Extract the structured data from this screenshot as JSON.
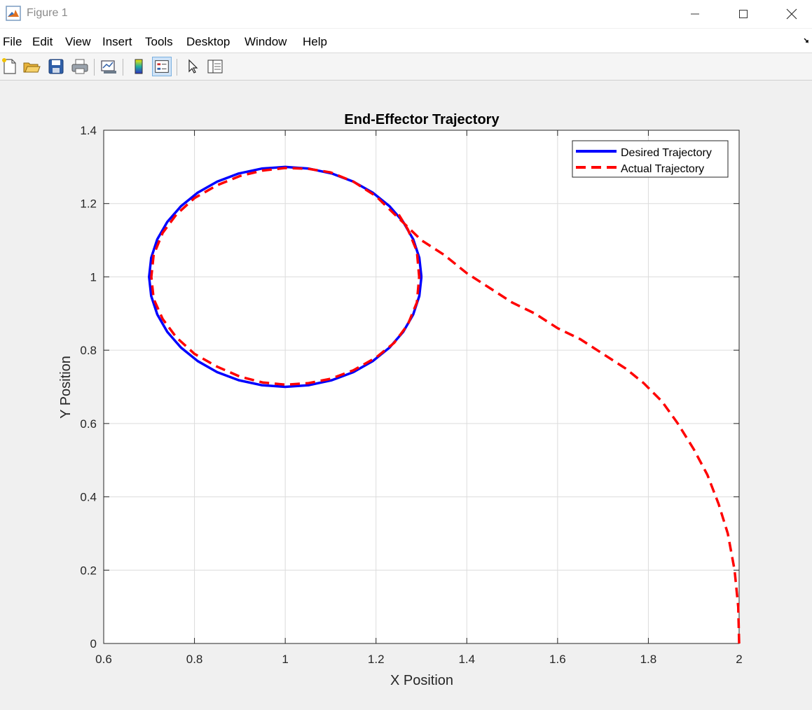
{
  "window": {
    "title": "Figure 1"
  },
  "menu": {
    "items": [
      "File",
      "Edit",
      "View",
      "Insert",
      "Tools",
      "Desktop",
      "Window",
      "Help"
    ]
  },
  "toolbar": {
    "icons": [
      "new-figure-icon",
      "open-file-icon",
      "save-icon",
      "print-icon",
      "link-plot-icon",
      "colorbar-icon",
      "legend-icon",
      "edit-plot-arrow-icon",
      "property-inspector-icon"
    ]
  },
  "colors": {
    "desired": "#0000ff",
    "actual": "#ff0000"
  },
  "chart_data": {
    "type": "line",
    "title": "End-Effector Trajectory",
    "xlabel": "X Position",
    "ylabel": "Y Position",
    "xlim": [
      0.6,
      2
    ],
    "ylim": [
      0,
      1.4
    ],
    "xticks": [
      0.6,
      0.8,
      1,
      1.2,
      1.4,
      1.6,
      1.8,
      2
    ],
    "xtick_labels": [
      "0.6",
      "0.8",
      "1",
      "1.2",
      "1.4",
      "1.6",
      "1.8",
      "2"
    ],
    "yticks": [
      0,
      0.2,
      0.4,
      0.6,
      0.8,
      1,
      1.2,
      1.4
    ],
    "ytick_labels": [
      "0",
      "0.2",
      "0.4",
      "0.6",
      "0.8",
      "1",
      "1.2",
      "1.4"
    ],
    "grid": true,
    "legend_position": "top-right",
    "series": [
      {
        "name": "Desired Trajectory",
        "style": "solid",
        "color": "#0000ff",
        "x": [
          1.3,
          1.2954,
          1.2819,
          1.2598,
          1.2298,
          1.1928,
          1.15,
          1.1026,
          1.0521,
          1.0,
          0.9479,
          0.8974,
          0.85,
          0.8072,
          0.7702,
          0.7402,
          0.7181,
          0.7046,
          0.7,
          0.7046,
          0.7181,
          0.7402,
          0.7702,
          0.8072,
          0.85,
          0.8974,
          0.9479,
          1.0,
          1.0521,
          1.1026,
          1.15,
          1.1928,
          1.2298,
          1.2598,
          1.2819,
          1.2954,
          1.3
        ],
        "y": [
          1.0,
          1.0521,
          1.1026,
          1.15,
          1.1928,
          1.2298,
          1.2598,
          1.2819,
          1.2954,
          1.3,
          1.2954,
          1.2819,
          1.2598,
          1.2298,
          1.1928,
          1.15,
          1.1026,
          1.0521,
          1.0,
          0.9479,
          0.8974,
          0.85,
          0.8072,
          0.7702,
          0.7402,
          0.7181,
          0.7046,
          0.7,
          0.7046,
          0.7181,
          0.7402,
          0.7702,
          0.8072,
          0.85,
          0.8974,
          0.9479,
          1.0
        ]
      },
      {
        "name": "Actual Trajectory",
        "style": "dashed",
        "color": "#ff0000",
        "x": [
          2.0,
          1.998,
          1.99,
          1.975,
          1.955,
          1.93,
          1.9,
          1.865,
          1.83,
          1.79,
          1.75,
          1.7,
          1.65,
          1.6,
          1.55,
          1.5,
          1.45,
          1.4,
          1.35,
          1.3,
          1.25,
          1.2,
          1.15,
          1.1,
          1.05,
          1.0,
          0.95,
          0.9,
          0.85,
          0.8,
          0.76,
          0.73,
          0.71,
          0.705,
          0.71,
          0.73,
          0.76,
          0.8,
          0.85,
          0.9,
          0.95,
          1.0,
          1.05,
          1.1,
          1.15,
          1.2,
          1.24,
          1.27,
          1.29,
          1.295,
          1.29,
          1.27,
          1.25
        ],
        "y": [
          0.0,
          0.1,
          0.2,
          0.3,
          0.38,
          0.46,
          0.53,
          0.6,
          0.66,
          0.71,
          0.75,
          0.79,
          0.83,
          0.86,
          0.9,
          0.93,
          0.97,
          1.01,
          1.06,
          1.1,
          1.16,
          1.22,
          1.26,
          1.285,
          1.295,
          1.297,
          1.29,
          1.275,
          1.25,
          1.215,
          1.17,
          1.12,
          1.06,
          1.0,
          0.94,
          0.885,
          0.835,
          0.79,
          0.755,
          0.728,
          0.712,
          0.706,
          0.71,
          0.722,
          0.745,
          0.78,
          0.82,
          0.87,
          0.93,
          1.0,
          1.07,
          1.13,
          1.17
        ]
      }
    ]
  }
}
